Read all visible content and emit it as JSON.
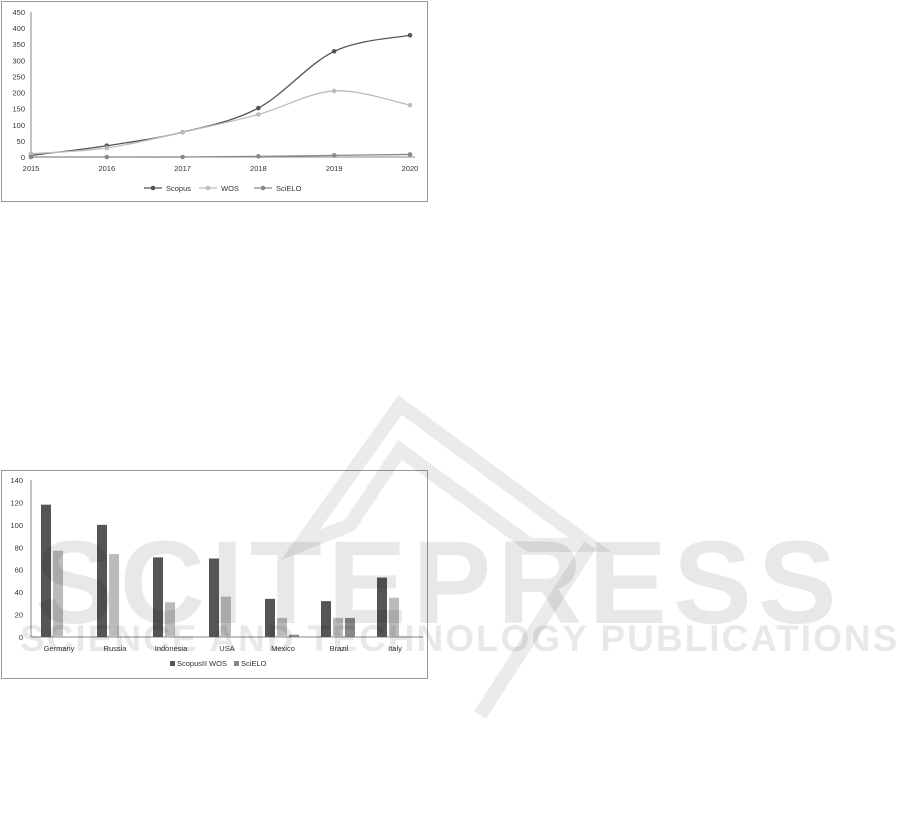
{
  "watermark": {
    "title": "SCITEPRESS",
    "subtitle": "SCIENCE AND TECHNOLOGY PUBLICATIONS"
  },
  "chart_data": [
    {
      "type": "line",
      "x": [
        "2015",
        "2016",
        "2017",
        "2018",
        "2019",
        "2020"
      ],
      "ylim": [
        0,
        450
      ],
      "yticks": [
        0,
        50,
        100,
        150,
        200,
        250,
        300,
        350,
        400,
        450
      ],
      "legend": "bottom",
      "grid": false,
      "series": [
        {
          "name": "Scopus",
          "values": [
            5,
            35,
            77,
            152,
            328,
            378
          ],
          "color": "#555555"
        },
        {
          "name": "WOS",
          "values": [
            10,
            28,
            77,
            132,
            205,
            161
          ],
          "color": "#bbbbbb"
        },
        {
          "name": "SciELO",
          "values": [
            0,
            0,
            0,
            2,
            5,
            8
          ],
          "color": "#888888"
        }
      ]
    },
    {
      "type": "bar",
      "categories": [
        "Germany",
        "Russia",
        "Indonesia",
        "USA",
        "Mexico",
        "Brazil",
        "Italy"
      ],
      "ylim": [
        0,
        140
      ],
      "yticks": [
        0,
        20,
        40,
        60,
        80,
        100,
        120,
        140
      ],
      "legend": "bottom",
      "grid": false,
      "series": [
        {
          "name": "Scopus",
          "values": [
            118,
            100,
            71,
            70,
            34,
            32,
            53
          ],
          "color": "#555555"
        },
        {
          "name": "WOS",
          "values": [
            77,
            74,
            31,
            36,
            17,
            17,
            35
          ],
          "color": "#bbbbbb"
        },
        {
          "name": "SciELO",
          "values": [
            0,
            0,
            0,
            0,
            2,
            17,
            0
          ],
          "color": "#888888"
        }
      ]
    }
  ]
}
